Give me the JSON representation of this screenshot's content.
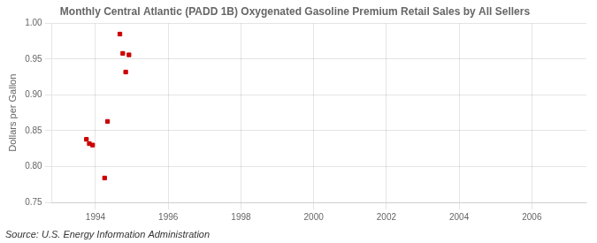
{
  "chart_data": {
    "type": "scatter",
    "title": "Monthly Central Atlantic (PADD 1B) Oxygenated Gasoline Premium Retail Sales by All Sellers",
    "ylabel": "Dollars per Gallon",
    "annotations": [
      "Source: U.S. Energy Information Administration"
    ],
    "x": [
      1993.75,
      1993.83,
      1993.92,
      1994.33,
      1994.25,
      1994.67,
      1994.75,
      1994.83,
      1994.92
    ],
    "values": [
      0.838,
      0.832,
      0.83,
      0.863,
      0.784,
      0.985,
      0.958,
      0.932,
      0.956
    ],
    "color": "#cc0000",
    "marker": "square",
    "xlim": [
      1992.8,
      2007.5
    ],
    "ylim": [
      0.75,
      1.0
    ],
    "xticks": [
      1994,
      1996,
      1998,
      2000,
      2002,
      2004,
      2006
    ],
    "yticks": [
      0.75,
      {
        "value": 0.8,
        "label": "0.80"
      },
      0.85,
      {
        "value": 0.9,
        "label": "0.90"
      },
      0.95,
      {
        "value": 1,
        "label": "1.00"
      }
    ],
    "grid": true
  }
}
